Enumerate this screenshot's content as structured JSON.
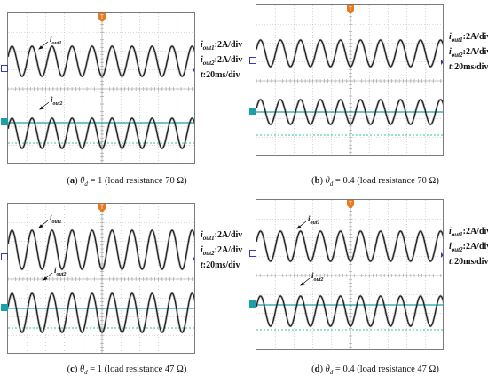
{
  "figure": {
    "panels": [
      {
        "id": "a",
        "caption_letter": "a",
        "caption_theta": "1",
        "caption_load": "(load resistance 70 Ω)",
        "label_iout1": "out1",
        "label_iout2": "out2",
        "scale_lines": [
          {
            "sym": "i",
            "sub": "out1",
            "text": ":2A/div"
          },
          {
            "sym": "i",
            "sub": "out2",
            "text": ":2A/div"
          },
          {
            "sym": "t",
            "sub": "",
            "text": ":20ms/div"
          }
        ],
        "ch1": "1",
        "ch2": "2"
      },
      {
        "id": "b",
        "caption_letter": "b",
        "caption_theta": "0.4",
        "caption_load": "(load resistance 70 Ω)",
        "label_iout1": "",
        "label_iout2": "",
        "scale_lines": [
          {
            "sym": "i",
            "sub": "out1",
            "text": ":2A/div"
          },
          {
            "sym": "i",
            "sub": "out2",
            "text": ":2A/div"
          },
          {
            "sym": "t",
            "sub": "",
            "text": ":20ms/div"
          }
        ],
        "ch1": "1",
        "ch2": "2"
      },
      {
        "id": "c",
        "caption_letter": "c",
        "caption_theta": "1",
        "caption_load": "(load resistance 47 Ω)",
        "label_iout1": "out1",
        "label_iout2": "out2",
        "scale_lines": [
          {
            "sym": "i",
            "sub": "out1",
            "text": ":2A/div"
          },
          {
            "sym": "i",
            "sub": "out2",
            "text": ":2A/div"
          },
          {
            "sym": "t",
            "sub": "",
            "text": ":20ms/div"
          }
        ],
        "ch1": "1",
        "ch2": "2"
      },
      {
        "id": "d",
        "caption_letter": "d",
        "caption_theta": "0.4",
        "caption_load": "(load resistance 47 Ω)",
        "label_iout1": "out1",
        "label_iout2": "out2",
        "scale_lines": [
          {
            "sym": "i",
            "sub": "out1",
            "text": ":2A/div"
          },
          {
            "sym": "i",
            "sub": "out2",
            "text": ":2A/div"
          },
          {
            "sym": "t",
            "sub": "",
            "text": ":20ms/div"
          }
        ],
        "ch1": "1",
        "ch2": "2"
      }
    ],
    "trigger_marker": "T",
    "theta_symbol": "θ",
    "theta_sub": "d",
    "equals": " = "
  }
}
